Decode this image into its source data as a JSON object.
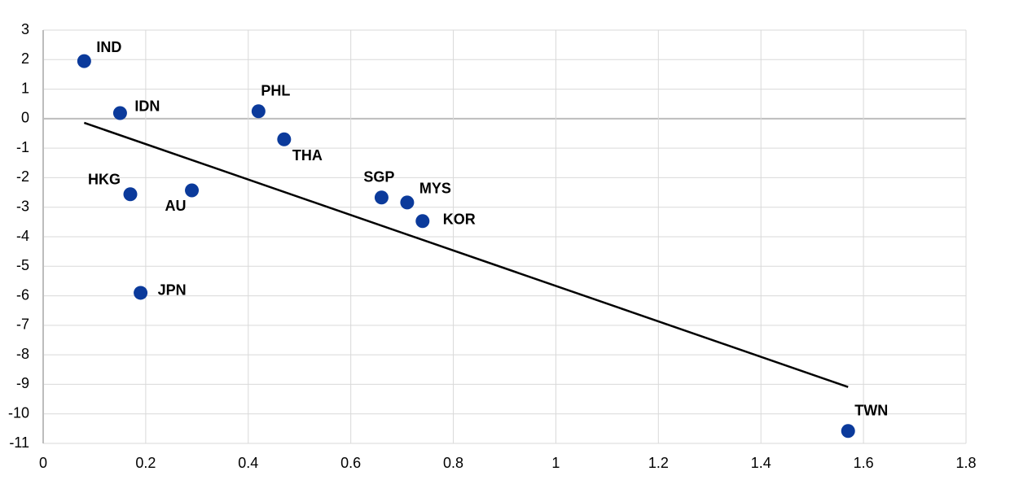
{
  "chart_data": {
    "type": "scatter",
    "labels": [
      "IND",
      "IDN",
      "PHL",
      "THA",
      "HKG",
      "AU",
      "SGP",
      "MYS",
      "KOR",
      "JPN",
      "TWN"
    ],
    "x": [
      0.08,
      0.15,
      0.42,
      0.47,
      0.17,
      0.29,
      0.66,
      0.71,
      0.74,
      0.19,
      1.57
    ],
    "y": [
      1.95,
      0.19,
      0.25,
      -0.7,
      -2.56,
      -2.43,
      -2.67,
      -2.84,
      -3.47,
      -5.9,
      -10.58
    ],
    "color": "#0b3a9b",
    "trend_line": {
      "x": [
        0.08,
        1.57
      ],
      "y": [
        -0.14,
        -9.09
      ],
      "color": "#000000"
    },
    "xlim": [
      0,
      1.8
    ],
    "xticks": [
      0,
      0.2,
      0.4,
      0.6,
      0.8,
      1,
      1.2,
      1.4,
      1.6,
      1.8
    ],
    "ylim": [
      -11,
      3
    ],
    "yticks": [
      -11,
      -10,
      -9,
      -8,
      -7,
      -6,
      -5,
      -4,
      -3,
      -2,
      -1,
      0,
      1,
      2,
      3
    ],
    "grid": true
  }
}
